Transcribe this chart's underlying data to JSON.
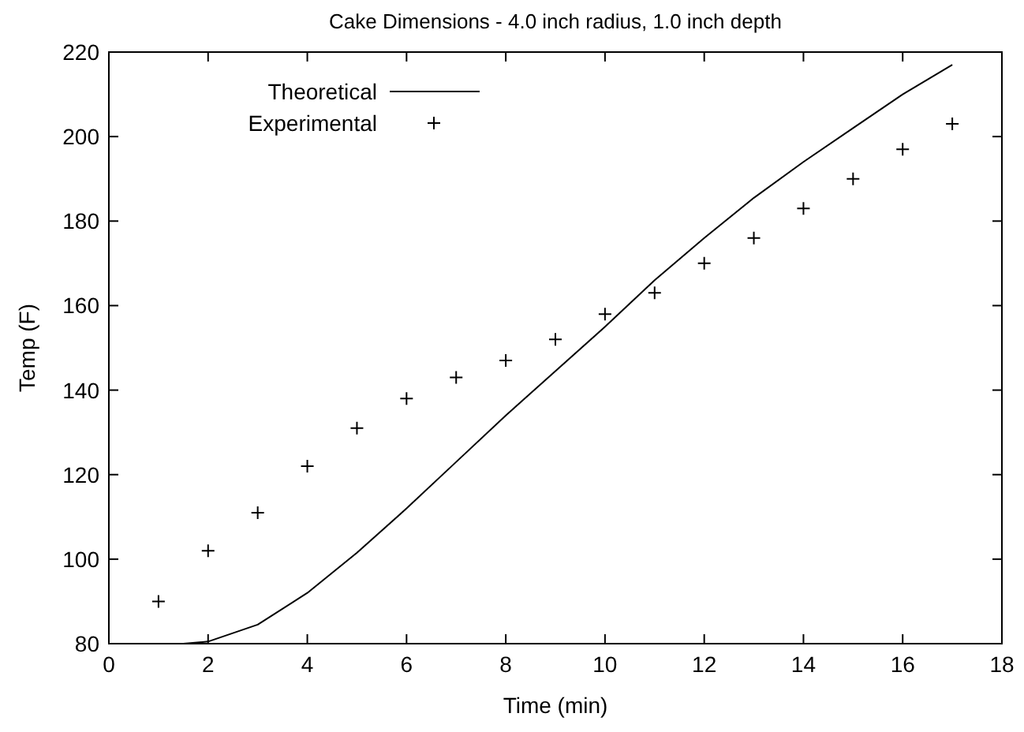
{
  "chart_data": {
    "type": "line",
    "title": "Cake Dimensions - 4.0 inch radius,  1.0 inch depth",
    "xlabel": "Time (min)",
    "ylabel": "Temp (F)",
    "xlim": [
      0,
      18
    ],
    "xticks": [
      0,
      2,
      4,
      6,
      8,
      10,
      12,
      14,
      16,
      18
    ],
    "ylim": [
      80,
      220
    ],
    "yticks": [
      80,
      100,
      120,
      140,
      160,
      180,
      200,
      220
    ],
    "legend": "top left",
    "grid": false,
    "series": [
      {
        "name": "Theoretical",
        "color": "#000000",
        "marker": "none",
        "line_style": "solid",
        "x": [
          1.5,
          2,
          3,
          4,
          5,
          6,
          7,
          8,
          9,
          10,
          11,
          12,
          13,
          14,
          15,
          16,
          17
        ],
        "values": [
          80,
          80.5,
          84.5,
          92,
          101.5,
          112,
          123,
          134,
          144.5,
          155,
          166,
          176,
          185.5,
          194,
          202,
          210,
          217
        ]
      },
      {
        "name": "Experimental",
        "type": "scatter",
        "color": "#000000",
        "marker": "cross",
        "x": [
          1,
          2,
          3,
          4,
          5,
          6,
          7,
          8,
          9,
          10,
          11,
          12,
          13,
          14,
          15,
          16,
          17
        ],
        "values": [
          90,
          102,
          111,
          122,
          131,
          138,
          143,
          147,
          152,
          158,
          163,
          170,
          176,
          183,
          190,
          197,
          203
        ]
      }
    ]
  }
}
